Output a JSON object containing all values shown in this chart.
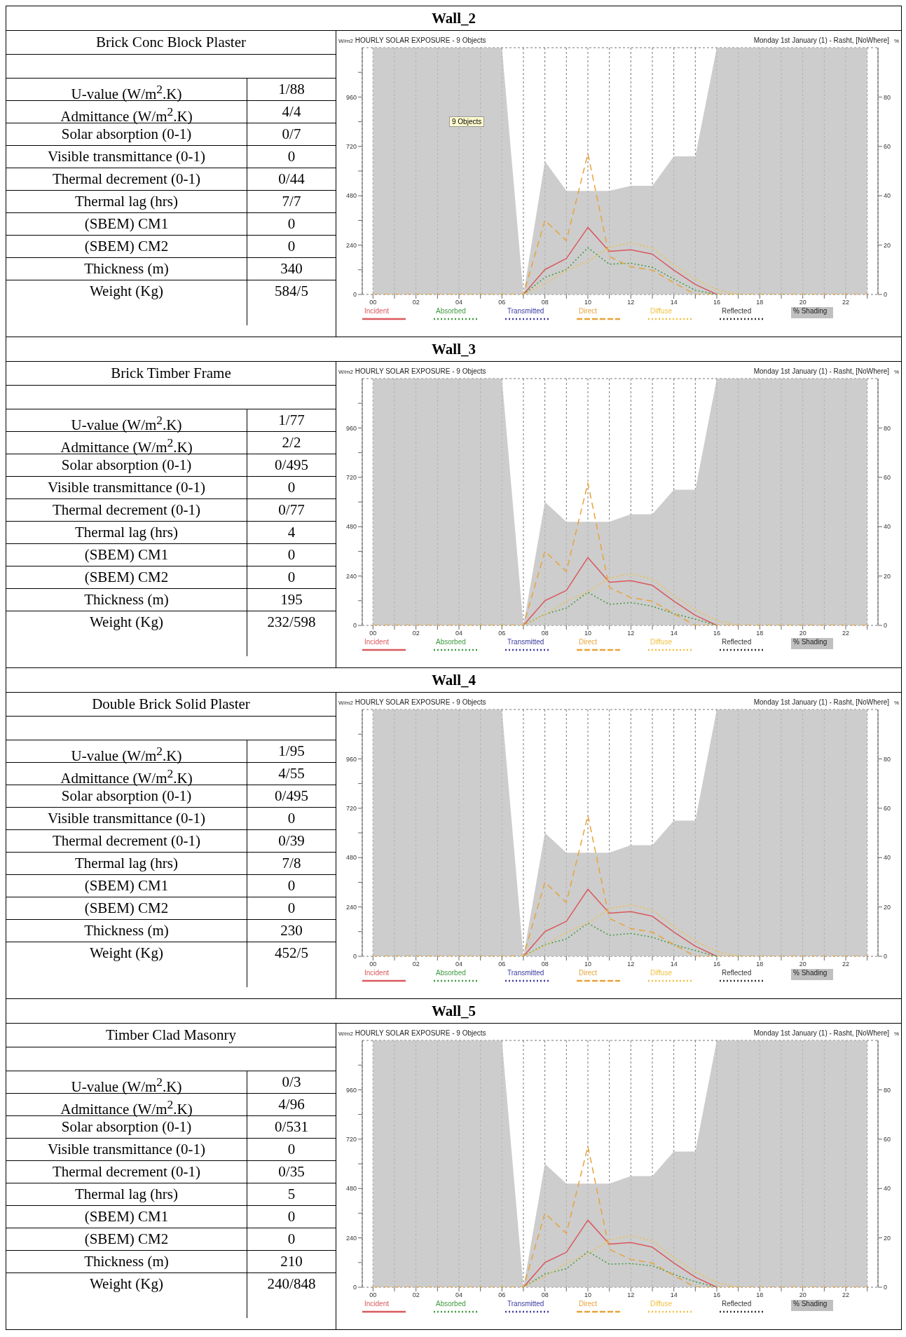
{
  "chart_data": [
    {
      "type": "line",
      "title": "HOURLY SOLAR EXPOSURE - 9 Objects",
      "subtitle": "Monday 1st January (1) - Rasht, [NoWhere]",
      "ylabel": "W/m2",
      "y2label": "%",
      "grid": true,
      "legend": "bottom",
      "marker": "none",
      "annotations": [
        "Wall_2",
        "Brick Conc Block Plaster",
        "U-value (W/m$^{2}$.K)",
        "1/88",
        "Admittance (W/m$^{2}$.K)",
        "4/4",
        "Solar absorption (0-1)",
        "0/7",
        "Visible transmittance (0-1)",
        "0",
        "Thermal decrement (0-1)",
        "0/44",
        "Thermal lag (hrs)",
        "7/7",
        "(SBEM) CM1",
        "0",
        "(SBEM) CM2",
        "0",
        "Thickness (m)",
        "340",
        "Weight (Kg)",
        "584/5",
        "9 Objects"
      ],
      "x": [
        0,
        1,
        2,
        3,
        4,
        5,
        6,
        7,
        8,
        9,
        10,
        11,
        12,
        13,
        14,
        15,
        16,
        17,
        18,
        19,
        20,
        21,
        22,
        23
      ],
      "xlim": [
        -0.5,
        23.5
      ],
      "xticks": [
        {
          "value": 0,
          "label": "00"
        },
        {
          "value": 1,
          "label": null
        },
        {
          "value": 2,
          "label": "02"
        },
        {
          "value": 3,
          "label": null
        },
        {
          "value": 4,
          "label": "04"
        },
        {
          "value": 5,
          "label": null
        },
        {
          "value": 6,
          "label": "06"
        },
        {
          "value": 7,
          "label": null
        },
        {
          "value": 8,
          "label": "08"
        },
        {
          "value": 9,
          "label": null
        },
        10,
        {
          "value": 11,
          "label": null
        },
        12,
        {
          "value": 13,
          "label": null
        },
        14,
        {
          "value": 15,
          "label": null
        },
        16,
        {
          "value": 17,
          "label": null
        },
        18,
        {
          "value": 19,
          "label": null
        },
        20,
        {
          "value": 21,
          "label": null
        },
        22,
        {
          "value": 23,
          "label": null
        }
      ],
      "ylim": [
        0,
        1200
      ],
      "yticks": [
        0,
        {
          "value": 120,
          "label": null
        },
        240,
        {
          "value": 360,
          "label": null
        },
        480,
        {
          "value": 600,
          "label": null
        },
        720,
        {
          "value": 840,
          "label": null
        },
        960,
        {
          "value": 1080,
          "label": null
        }
      ],
      "y2lim": [
        0,
        100
      ],
      "y2ticks": [
        0,
        20,
        40,
        60,
        80
      ],
      "series": [
        {
          "name": "Incident",
          "color": "#d9595e",
          "line_style": "solid",
          "values": [
            null,
            null,
            null,
            null,
            null,
            null,
            null,
            0,
            121,
            175,
            326,
            210,
            217,
            196,
            118,
            49,
            0,
            null,
            null,
            null,
            null,
            null,
            null,
            null
          ]
        },
        {
          "name": "Absorbed",
          "color": "#3f9a3f",
          "line_style": "dotted",
          "values": [
            null,
            null,
            null,
            null,
            null,
            null,
            null,
            0,
            83,
            121,
            227,
            147,
            152,
            132,
            75,
            20,
            0,
            null,
            null,
            null,
            null,
            null,
            null,
            null
          ]
        },
        {
          "name": "Transmitted",
          "color": "#3a3aa0",
          "line_style": "dotted",
          "values": [
            null,
            null,
            null,
            null,
            null,
            null,
            null,
            null,
            null,
            null,
            null,
            null,
            null,
            null,
            null,
            null,
            null,
            null,
            null,
            null,
            null,
            null,
            null,
            null
          ]
        },
        {
          "name": "Direct",
          "color": "#e8a33a",
          "line_style": "dashed",
          "values": [
            0,
            0,
            0,
            0,
            0,
            0,
            0,
            0,
            360,
            262,
            685,
            184,
            135,
            118,
            57,
            0,
            0,
            0,
            0,
            0,
            0,
            0,
            0,
            0
          ]
        },
        {
          "name": "Diffuse",
          "color": "#f0c040",
          "line_style": "dotted",
          "values": [
            null,
            null,
            null,
            null,
            null,
            null,
            null,
            0,
            52,
            118,
            161,
            230,
            251,
            225,
            144,
            75,
            23,
            0,
            null,
            null,
            null,
            null,
            null,
            null
          ]
        },
        {
          "name": "Reflected",
          "color": "#333333",
          "line_style": "dotted",
          "values": [
            null,
            null,
            null,
            null,
            null,
            null,
            null,
            null,
            null,
            null,
            null,
            null,
            null,
            null,
            null,
            null,
            null,
            null,
            null,
            null,
            null,
            null,
            null,
            null
          ]
        },
        {
          "name": "% Shading",
          "type": "area",
          "axis": "y2",
          "color": "#c0c0c0",
          "values": [
            100,
            100,
            100,
            100,
            100,
            100,
            100,
            0,
            54,
            42,
            42,
            42,
            44,
            44,
            56,
            56,
            100,
            100,
            100,
            100,
            100,
            100,
            100,
            100
          ]
        }
      ]
    },
    {
      "type": "line",
      "title": "HOURLY SOLAR EXPOSURE - 9 Objects",
      "subtitle": "Monday 1st January (1) - Rasht, [NoWhere]",
      "ylabel": "W/m2",
      "y2label": "%",
      "grid": true,
      "legend": "bottom",
      "marker": "none",
      "annotations": [
        "Wall_3",
        "Brick Timber Frame",
        "U-value (W/m$^{2}$.K)",
        "1/77",
        "Admittance (W/m$^{2}$.K)",
        "2/2",
        "Solar absorption (0-1)",
        "0/495",
        "Visible transmittance (0-1)",
        "0",
        "Thermal decrement (0-1)",
        "0/77",
        "Thermal lag (hrs)",
        "4",
        "(SBEM) CM1",
        "0",
        "(SBEM) CM2",
        "0",
        "Thickness (m)",
        "195",
        "Weight (Kg)",
        "232/598"
      ],
      "x": [
        0,
        1,
        2,
        3,
        4,
        5,
        6,
        7,
        8,
        9,
        10,
        11,
        12,
        13,
        14,
        15,
        16,
        17,
        18,
        19,
        20,
        21,
        22,
        23
      ],
      "xlim": [
        -0.5,
        23.5
      ],
      "xticks": [
        {
          "value": 0,
          "label": "00"
        },
        {
          "value": 1,
          "label": null
        },
        {
          "value": 2,
          "label": "02"
        },
        {
          "value": 3,
          "label": null
        },
        {
          "value": 4,
          "label": "04"
        },
        {
          "value": 5,
          "label": null
        },
        {
          "value": 6,
          "label": "06"
        },
        {
          "value": 7,
          "label": null
        },
        {
          "value": 8,
          "label": "08"
        },
        {
          "value": 9,
          "label": null
        },
        10,
        {
          "value": 11,
          "label": null
        },
        12,
        {
          "value": 13,
          "label": null
        },
        14,
        {
          "value": 15,
          "label": null
        },
        16,
        {
          "value": 17,
          "label": null
        },
        18,
        {
          "value": 19,
          "label": null
        },
        20,
        {
          "value": 21,
          "label": null
        },
        22,
        {
          "value": 23,
          "label": null
        }
      ],
      "ylim": [
        0,
        1200
      ],
      "yticks": [
        0,
        {
          "value": 120,
          "label": null
        },
        240,
        {
          "value": 360,
          "label": null
        },
        480,
        {
          "value": 600,
          "label": null
        },
        720,
        {
          "value": 840,
          "label": null
        },
        960,
        {
          "value": 1080,
          "label": null
        }
      ],
      "y2lim": [
        0,
        100
      ],
      "y2ticks": [
        0,
        20,
        40,
        60,
        80
      ],
      "series": [
        {
          "name": "Incident",
          "color": "#d9595e",
          "line_style": "solid",
          "values": [
            null,
            null,
            null,
            null,
            null,
            null,
            null,
            0,
            120,
            170,
            330,
            210,
            217,
            195,
            118,
            49,
            0,
            null,
            null,
            null,
            null,
            null,
            null,
            null
          ]
        },
        {
          "name": "Absorbed",
          "color": "#3f9a3f",
          "line_style": "dotted",
          "values": [
            null,
            null,
            null,
            null,
            null,
            null,
            null,
            0,
            54,
            84,
            161,
            102,
            111,
            93,
            57,
            30,
            0,
            null,
            null,
            null,
            null,
            null,
            null,
            null
          ]
        },
        {
          "name": "Transmitted",
          "color": "#3a3aa0",
          "line_style": "dotted",
          "values": [
            null,
            null,
            null,
            null,
            null,
            null,
            null,
            null,
            null,
            null,
            null,
            null,
            null,
            null,
            null,
            null,
            null,
            null,
            null,
            null,
            null,
            null,
            null,
            null
          ]
        },
        {
          "name": "Direct",
          "color": "#e8a33a",
          "line_style": "dashed",
          "values": [
            0,
            0,
            0,
            0,
            0,
            0,
            0,
            0,
            360,
            262,
            692,
            184,
            135,
            118,
            57,
            0,
            0,
            0,
            0,
            0,
            0,
            0,
            0,
            0
          ]
        },
        {
          "name": "Diffuse",
          "color": "#f0c040",
          "line_style": "dotted",
          "values": [
            null,
            null,
            null,
            null,
            null,
            null,
            null,
            0,
            52,
            118,
            161,
            230,
            251,
            225,
            144,
            75,
            23,
            0,
            null,
            null,
            null,
            null,
            null,
            null
          ]
        },
        {
          "name": "Reflected",
          "color": "#333333",
          "line_style": "dotted",
          "values": [
            null,
            null,
            null,
            null,
            null,
            null,
            null,
            null,
            null,
            null,
            null,
            null,
            null,
            null,
            null,
            null,
            null,
            null,
            null,
            null,
            null,
            null,
            null,
            null
          ]
        },
        {
          "name": "% Shading",
          "type": "area",
          "axis": "y2",
          "color": "#c0c0c0",
          "values": [
            100,
            100,
            100,
            100,
            100,
            100,
            100,
            0,
            50,
            42,
            42,
            42,
            45,
            45,
            55,
            55,
            100,
            100,
            100,
            100,
            100,
            100,
            100,
            100
          ]
        }
      ]
    },
    {
      "type": "line",
      "title": "HOURLY SOLAR EXPOSURE - 9 Objects",
      "subtitle": "Monday 1st January (1) - Rasht, [NoWhere]",
      "ylabel": "W/m2",
      "y2label": "%",
      "grid": true,
      "legend": "bottom",
      "marker": "none",
      "annotations": [
        "Wall_4",
        "Double Brick Solid Plaster",
        "U-value (W/m$^{2}$.K)",
        "1/95",
        "Admittance (W/m$^{2}$.K)",
        "4/55",
        "Solar absorption (0-1)",
        "0/495",
        "Visible transmittance (0-1)",
        "0",
        "Thermal decrement (0-1)",
        "0/39",
        "Thermal lag (hrs)",
        "7/8",
        "(SBEM) CM1",
        "0",
        "(SBEM) CM2",
        "0",
        "Thickness (m)",
        "230",
        "Weight (Kg)",
        "452/5"
      ],
      "x": [
        0,
        1,
        2,
        3,
        4,
        5,
        6,
        7,
        8,
        9,
        10,
        11,
        12,
        13,
        14,
        15,
        16,
        17,
        18,
        19,
        20,
        21,
        22,
        23
      ],
      "xlim": [
        -0.5,
        23.5
      ],
      "xticks": [
        {
          "value": 0,
          "label": "00"
        },
        {
          "value": 1,
          "label": null
        },
        {
          "value": 2,
          "label": "02"
        },
        {
          "value": 3,
          "label": null
        },
        {
          "value": 4,
          "label": "04"
        },
        {
          "value": 5,
          "label": null
        },
        {
          "value": 6,
          "label": "06"
        },
        {
          "value": 7,
          "label": null
        },
        {
          "value": 8,
          "label": "08"
        },
        {
          "value": 9,
          "label": null
        },
        10,
        {
          "value": 11,
          "label": null
        },
        12,
        {
          "value": 13,
          "label": null
        },
        14,
        {
          "value": 15,
          "label": null
        },
        16,
        {
          "value": 17,
          "label": null
        },
        18,
        {
          "value": 19,
          "label": null
        },
        20,
        {
          "value": 21,
          "label": null
        },
        22,
        {
          "value": 23,
          "label": null
        }
      ],
      "ylim": [
        0,
        1200
      ],
      "yticks": [
        0,
        {
          "value": 120,
          "label": null
        },
        240,
        {
          "value": 360,
          "label": null
        },
        480,
        {
          "value": 600,
          "label": null
        },
        720,
        {
          "value": 840,
          "label": null
        },
        960,
        {
          "value": 1080,
          "label": null
        }
      ],
      "y2lim": [
        0,
        100
      ],
      "y2ticks": [
        0,
        20,
        40,
        60,
        80
      ],
      "series": [
        {
          "name": "Incident",
          "color": "#d9595e",
          "line_style": "solid",
          "values": [
            null,
            null,
            null,
            null,
            null,
            null,
            null,
            0,
            120,
            170,
            326,
            210,
            217,
            195,
            118,
            49,
            0,
            null,
            null,
            null,
            null,
            null,
            null,
            null
          ]
        },
        {
          "name": "Absorbed",
          "color": "#3f9a3f",
          "line_style": "dotted",
          "values": [
            null,
            null,
            null,
            null,
            null,
            null,
            null,
            0,
            57,
            84,
            161,
            102,
            111,
            93,
            57,
            28,
            0,
            null,
            null,
            null,
            null,
            null,
            null,
            null
          ]
        },
        {
          "name": "Transmitted",
          "color": "#3a3aa0",
          "line_style": "dotted",
          "values": [
            null,
            null,
            null,
            null,
            null,
            null,
            null,
            null,
            null,
            null,
            null,
            null,
            null,
            null,
            null,
            null,
            null,
            null,
            null,
            null,
            null,
            null,
            null,
            null
          ]
        },
        {
          "name": "Direct",
          "color": "#e8a33a",
          "line_style": "dashed",
          "values": [
            0,
            0,
            0,
            0,
            0,
            0,
            0,
            0,
            360,
            262,
            685,
            184,
            135,
            118,
            57,
            0,
            0,
            0,
            0,
            0,
            0,
            0,
            0,
            0
          ]
        },
        {
          "name": "Diffuse",
          "color": "#f0c040",
          "line_style": "dotted",
          "values": [
            null,
            null,
            null,
            null,
            null,
            null,
            null,
            0,
            52,
            118,
            161,
            230,
            251,
            225,
            144,
            75,
            23,
            0,
            null,
            null,
            null,
            null,
            null,
            null
          ]
        },
        {
          "name": "Reflected",
          "color": "#333333",
          "line_style": "dotted",
          "values": [
            null,
            null,
            null,
            null,
            null,
            null,
            null,
            null,
            null,
            null,
            null,
            null,
            null,
            null,
            null,
            null,
            null,
            null,
            null,
            null,
            null,
            null,
            null,
            null
          ]
        },
        {
          "name": "% Shading",
          "type": "area",
          "axis": "y2",
          "color": "#c0c0c0",
          "values": [
            100,
            100,
            100,
            100,
            100,
            100,
            100,
            0,
            50,
            42,
            42,
            42,
            45,
            45,
            55,
            55,
            100,
            100,
            100,
            100,
            100,
            100,
            100,
            100
          ]
        }
      ]
    },
    {
      "type": "line",
      "title": "HOURLY SOLAR EXPOSURE - 9 Objects",
      "subtitle": "Monday 1st January (1) - Rasht, [NoWhere]",
      "ylabel": "W/m2",
      "y2label": "%",
      "grid": true,
      "legend": "bottom",
      "marker": "none",
      "annotations": [
        "Wall_5",
        "Timber Clad Masonry",
        "U-value (W/m$^{2}$.K)",
        "0/3",
        "Admittance (W/m$^{2}$.K)",
        "4/96",
        "Solar absorption (0-1)",
        "0/531",
        "Visible transmittance (0-1)",
        "0",
        "Thermal decrement (0-1)",
        "0/35",
        "Thermal lag (hrs)",
        "5",
        "(SBEM) CM1",
        "0",
        "(SBEM) CM2",
        "0",
        "Thickness (m)",
        "210",
        "Weight (Kg)",
        "240/848"
      ],
      "x": [
        0,
        1,
        2,
        3,
        4,
        5,
        6,
        7,
        8,
        9,
        10,
        11,
        12,
        13,
        14,
        15,
        16,
        17,
        18,
        19,
        20,
        21,
        22,
        23
      ],
      "xlim": [
        -0.5,
        23.5
      ],
      "xticks": [
        {
          "value": 0,
          "label": "00"
        },
        {
          "value": 1,
          "label": null
        },
        {
          "value": 2,
          "label": "02"
        },
        {
          "value": 3,
          "label": null
        },
        {
          "value": 4,
          "label": "04"
        },
        {
          "value": 5,
          "label": null
        },
        {
          "value": 6,
          "label": "06"
        },
        {
          "value": 7,
          "label": null
        },
        {
          "value": 8,
          "label": "08"
        },
        {
          "value": 9,
          "label": null
        },
        10,
        {
          "value": 11,
          "label": null
        },
        12,
        {
          "value": 13,
          "label": null
        },
        14,
        {
          "value": 15,
          "label": null
        },
        16,
        {
          "value": 17,
          "label": null
        },
        18,
        {
          "value": 19,
          "label": null
        },
        20,
        {
          "value": 21,
          "label": null
        },
        22,
        {
          "value": 23,
          "label": null
        }
      ],
      "ylim": [
        0,
        1200
      ],
      "yticks": [
        0,
        {
          "value": 120,
          "label": null
        },
        240,
        {
          "value": 360,
          "label": null
        },
        480,
        {
          "value": 600,
          "label": null
        },
        720,
        {
          "value": 840,
          "label": null
        },
        960,
        {
          "value": 1080,
          "label": null
        }
      ],
      "y2lim": [
        0,
        100
      ],
      "y2ticks": [
        0,
        20,
        40,
        60,
        80
      ],
      "series": [
        {
          "name": "Incident",
          "color": "#d9595e",
          "line_style": "solid",
          "values": [
            null,
            null,
            null,
            null,
            null,
            null,
            null,
            0,
            120,
            170,
            326,
            210,
            217,
            195,
            118,
            49,
            0,
            null,
            null,
            null,
            null,
            null,
            null,
            null
          ]
        },
        {
          "name": "Absorbed",
          "color": "#3f9a3f",
          "line_style": "dotted",
          "values": [
            null,
            null,
            null,
            null,
            null,
            null,
            null,
            0,
            64,
            90,
            173,
            112,
            115,
            104,
            63,
            26,
            0,
            null,
            null,
            null,
            null,
            null,
            null,
            null
          ]
        },
        {
          "name": "Transmitted",
          "color": "#3a3aa0",
          "line_style": "dotted",
          "values": [
            null,
            null,
            null,
            null,
            null,
            null,
            null,
            null,
            null,
            null,
            null,
            null,
            null,
            null,
            null,
            null,
            null,
            null,
            null,
            null,
            null,
            null,
            null,
            null
          ]
        },
        {
          "name": "Direct",
          "color": "#e8a33a",
          "line_style": "dashed",
          "values": [
            0,
            0,
            0,
            0,
            0,
            0,
            0,
            0,
            360,
            262,
            685,
            184,
            135,
            118,
            57,
            0,
            0,
            0,
            0,
            0,
            0,
            0,
            0,
            0
          ]
        },
        {
          "name": "Diffuse",
          "color": "#f0c040",
          "line_style": "dotted",
          "values": [
            null,
            null,
            null,
            null,
            null,
            null,
            null,
            0,
            52,
            118,
            161,
            230,
            251,
            225,
            144,
            75,
            23,
            0,
            null,
            null,
            null,
            null,
            null,
            null
          ]
        },
        {
          "name": "Reflected",
          "color": "#333333",
          "line_style": "dotted",
          "values": [
            null,
            null,
            null,
            null,
            null,
            null,
            null,
            null,
            null,
            null,
            null,
            null,
            null,
            null,
            null,
            null,
            null,
            null,
            null,
            null,
            null,
            null,
            null,
            null
          ]
        },
        {
          "name": "% Shading",
          "type": "area",
          "axis": "y2",
          "color": "#c0c0c0",
          "values": [
            100,
            100,
            100,
            100,
            100,
            100,
            100,
            0,
            50,
            42,
            42,
            42,
            45,
            45,
            55,
            55,
            100,
            100,
            100,
            100,
            100,
            100,
            100,
            100
          ]
        }
      ]
    }
  ]
}
